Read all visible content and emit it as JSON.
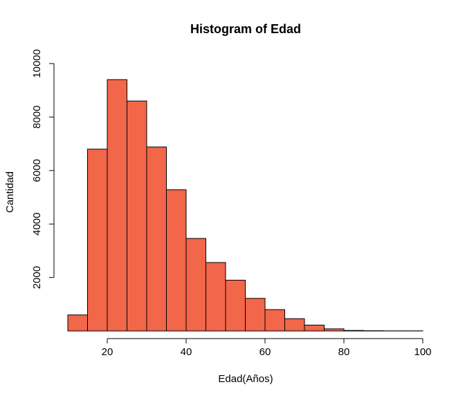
{
  "chart_data": {
    "type": "bar",
    "title": "Histogram of Edad",
    "xlabel": "Edad(Años)",
    "ylabel": "Cantidad",
    "bin_edges": [
      10,
      15,
      20,
      25,
      30,
      35,
      40,
      45,
      50,
      55,
      60,
      65,
      70,
      75,
      80,
      85,
      90,
      95,
      100
    ],
    "values": [
      600,
      6800,
      9400,
      8600,
      6880,
      5280,
      3460,
      2560,
      1900,
      1220,
      800,
      460,
      220,
      80,
      20,
      10,
      5,
      5
    ],
    "xlim": [
      10,
      100
    ],
    "ylim": [
      0,
      10000
    ],
    "x_ticks": [
      "20",
      "40",
      "60",
      "80",
      "100"
    ],
    "y_ticks": [
      "2000",
      "4000",
      "6000",
      "8000",
      "10000"
    ],
    "bar_color": "#F26649",
    "grid": false
  }
}
